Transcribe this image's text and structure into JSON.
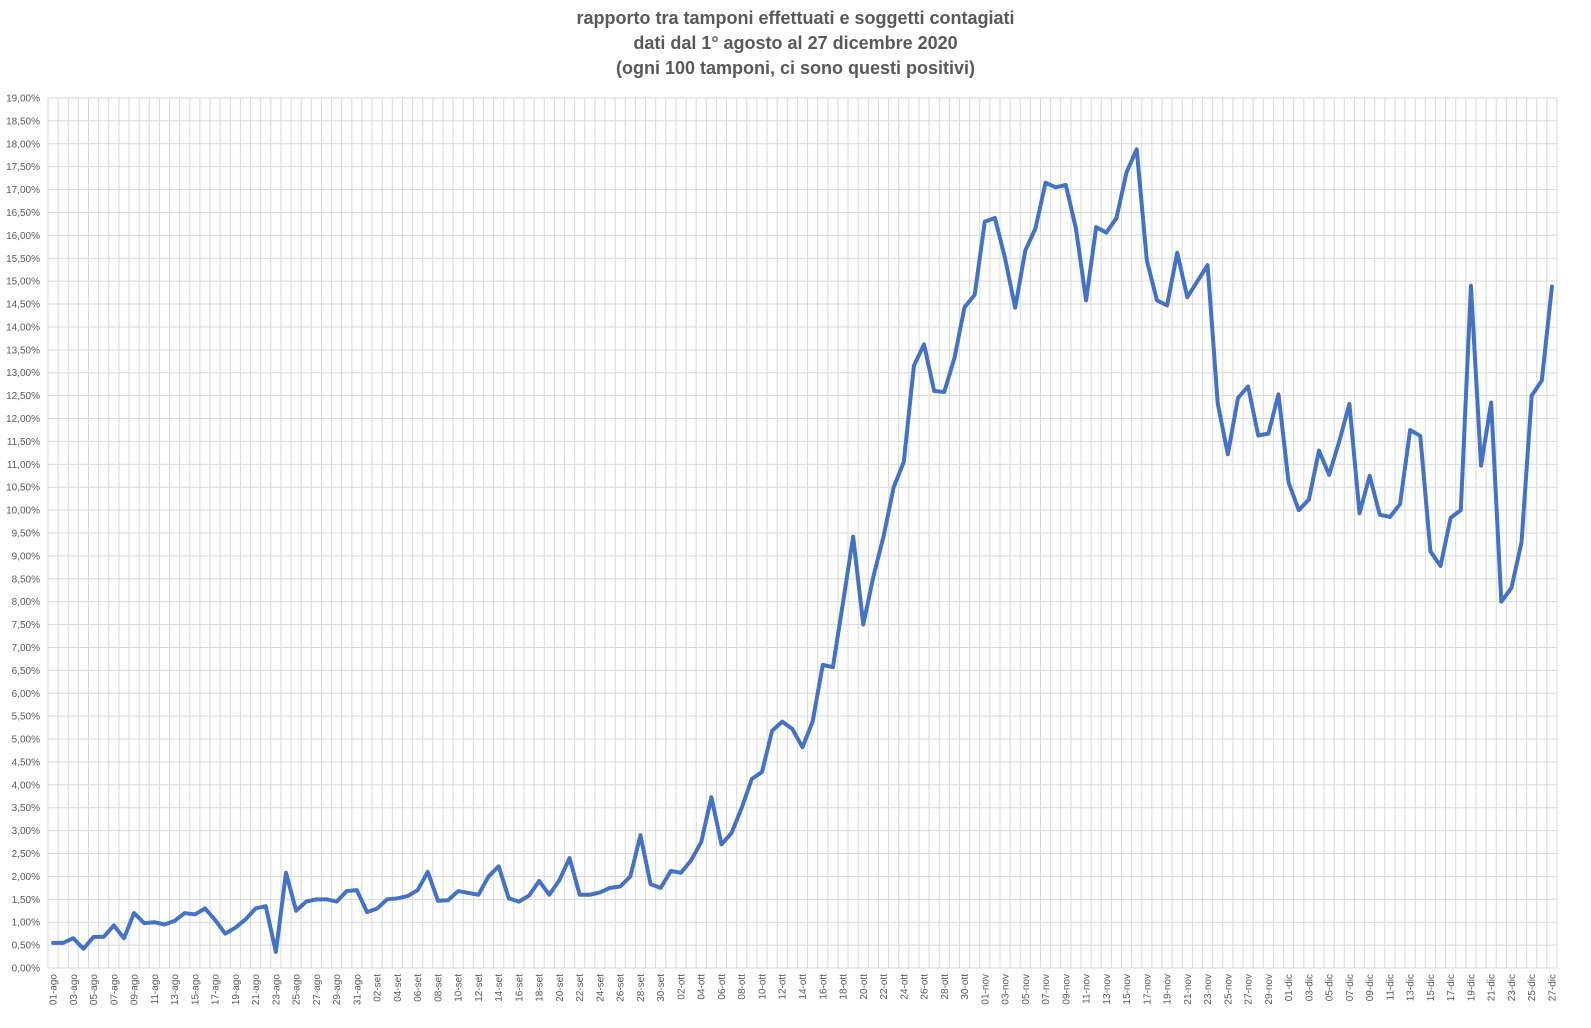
{
  "chart_data": {
    "type": "line",
    "title_lines": [
      "rapporto tra tamponi effettuati e soggetti contagiati",
      "dati dal 1° agosto al 27 dicembre 2020",
      "(ogni 100 tamponi, ci sono questi positivi)"
    ],
    "ylim": [
      0,
      19
    ],
    "y_ticks": [
      "0,00%",
      "0,50%",
      "1,00%",
      "1,50%",
      "2,00%",
      "2,50%",
      "3,00%",
      "3,50%",
      "4,00%",
      "4,50%",
      "5,00%",
      "5,50%",
      "6,00%",
      "6,50%",
      "7,00%",
      "7,50%",
      "8,00%",
      "8,50%",
      "9,00%",
      "9,50%",
      "10,00%",
      "10,50%",
      "11,00%",
      "11,50%",
      "12,00%",
      "12,50%",
      "13,00%",
      "13,50%",
      "14,00%",
      "14,50%",
      "15,00%",
      "15,50%",
      "16,00%",
      "16,50%",
      "17,00%",
      "17,50%",
      "18,00%",
      "18,50%",
      "19,00%"
    ],
    "x_tick_labels": [
      "01-ago",
      "03-ago",
      "05-ago",
      "07-ago",
      "09-ago",
      "11-ago",
      "13-ago",
      "15-ago",
      "17-ago",
      "19-ago",
      "21-ago",
      "23-ago",
      "25-ago",
      "27-ago",
      "29-ago",
      "31-ago",
      "02-set",
      "04-set",
      "06-set",
      "08-set",
      "10-set",
      "12-set",
      "14-set",
      "16-set",
      "18-set",
      "20-set",
      "22-set",
      "24-set",
      "26-set",
      "28-set",
      "30-set",
      "02-ott",
      "04-ott",
      "06-ott",
      "08-ott",
      "10-ott",
      "12-ott",
      "14-ott",
      "16-ott",
      "18-ott",
      "20-ott",
      "22-ott",
      "24-ott",
      "26-ott",
      "28-ott",
      "30-ott",
      "01-nov",
      "03-nov",
      "05-nov",
      "07-nov",
      "09-nov",
      "11-nov",
      "13-nov",
      "15-nov",
      "17-nov",
      "19-nov",
      "21-nov",
      "23-nov",
      "25-nov",
      "27-nov",
      "29-nov",
      "01-dic",
      "03-dic",
      "05-dic",
      "07-dic",
      "09-dic",
      "11-dic",
      "13-dic",
      "15-dic",
      "17-dic",
      "19-dic",
      "21-dic",
      "23-dic",
      "25-dic",
      "27-dic"
    ],
    "series": [
      {
        "color": "#4472C4",
        "values": [
          0.55,
          0.55,
          0.65,
          0.42,
          0.68,
          0.68,
          0.93,
          0.65,
          1.2,
          0.98,
          1.0,
          0.95,
          1.03,
          1.2,
          1.17,
          1.3,
          1.05,
          0.75,
          0.88,
          1.06,
          1.3,
          1.35,
          0.35,
          2.08,
          1.25,
          1.45,
          1.5,
          1.5,
          1.45,
          1.68,
          1.7,
          1.22,
          1.3,
          1.5,
          1.52,
          1.57,
          1.7,
          2.1,
          1.47,
          1.48,
          1.68,
          1.64,
          1.6,
          2.0,
          2.22,
          1.52,
          1.45,
          1.58,
          1.9,
          1.6,
          1.92,
          2.4,
          1.6,
          1.6,
          1.65,
          1.75,
          1.78,
          2.0,
          2.9,
          1.83,
          1.75,
          2.12,
          2.08,
          2.35,
          2.75,
          3.73,
          2.7,
          2.95,
          3.5,
          4.13,
          4.28,
          5.18,
          5.38,
          5.22,
          4.82,
          5.38,
          6.62,
          6.57,
          7.98,
          9.42,
          7.5,
          8.55,
          9.42,
          10.5,
          11.05,
          13.15,
          13.62,
          12.6,
          12.58,
          13.32,
          14.43,
          14.7,
          16.3,
          16.38,
          15.5,
          14.42,
          15.67,
          16.15,
          17.15,
          17.05,
          17.1,
          16.15,
          14.58,
          16.18,
          16.06,
          16.38,
          17.38,
          17.88,
          15.45,
          14.58,
          14.47,
          15.62,
          14.65,
          15.0,
          15.35,
          12.33,
          11.22,
          12.45,
          12.7,
          11.63,
          11.67,
          12.53,
          10.6,
          10.0,
          10.23,
          11.3,
          10.77,
          11.5,
          12.32,
          9.93,
          10.75,
          9.9,
          9.85,
          10.13,
          11.75,
          11.62,
          9.1,
          8.78,
          9.83,
          10.0,
          14.9,
          10.97,
          12.35,
          8.0,
          8.3,
          9.3,
          12.5,
          12.83,
          14.88
        ]
      }
    ]
  }
}
